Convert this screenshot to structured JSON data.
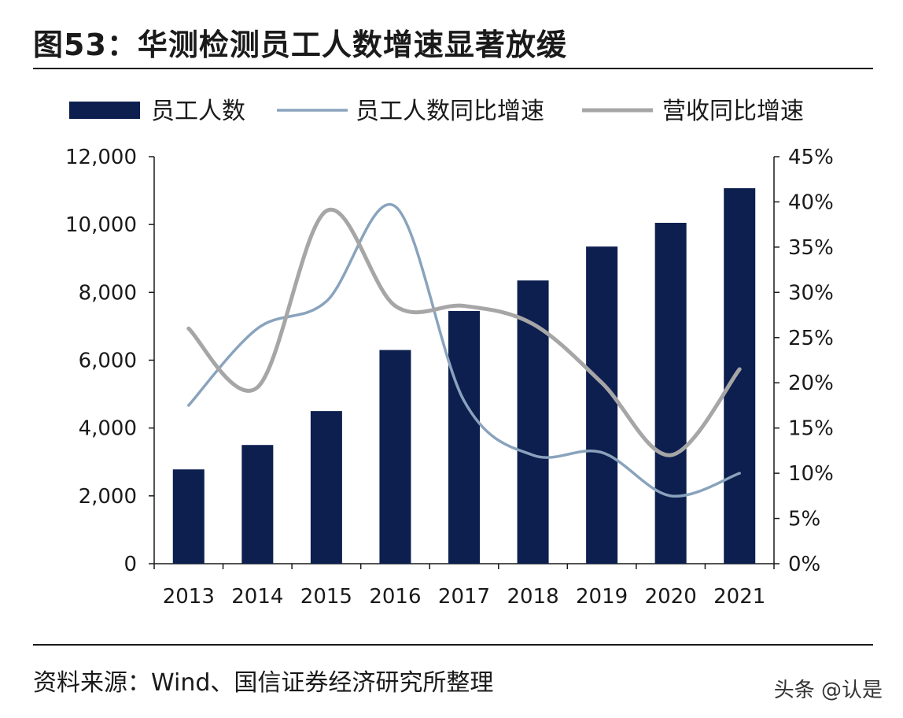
{
  "title": "图53：华测检测员工人数增速显著放缓",
  "source": "资料来源：Wind、国信证券经济研究所整理",
  "watermark": "头条 @认是",
  "colors": {
    "bar": "#0d1f4f",
    "employee_growth": "#8aa3bd",
    "revenue_growth": "#a6a6a6",
    "axis": "#1a1a1a"
  },
  "chart_data": {
    "type": "bar",
    "categories": [
      "2013",
      "2014",
      "2015",
      "2016",
      "2017",
      "2018",
      "2019",
      "2020",
      "2021"
    ],
    "series": [
      {
        "name": "员工人数",
        "type": "bar",
        "axis": "left",
        "values": [
          2780,
          3500,
          4500,
          6300,
          7450,
          8350,
          9350,
          10050,
          11070
        ]
      },
      {
        "name": "员工人数同比增速",
        "type": "line",
        "axis": "right",
        "values": [
          17.5,
          26,
          29,
          39.5,
          18,
          12,
          12.3,
          7.5,
          10
        ]
      },
      {
        "name": "营收同比增速",
        "type": "line",
        "axis": "right",
        "values": [
          26,
          19.5,
          39,
          28.5,
          28.5,
          26.5,
          20,
          12,
          21.5
        ]
      }
    ],
    "y_left": {
      "min": 0,
      "max": 12000,
      "ticks": [
        0,
        2000,
        4000,
        6000,
        8000,
        10000,
        12000
      ],
      "tick_labels": [
        "0",
        "2,000",
        "4,000",
        "6,000",
        "8,000",
        "10,000",
        "12,000"
      ]
    },
    "y_right": {
      "min": 0,
      "max": 45,
      "ticks": [
        0,
        5,
        10,
        15,
        20,
        25,
        30,
        35,
        40,
        45
      ],
      "tick_labels": [
        "0%",
        "5%",
        "10%",
        "15%",
        "20%",
        "25%",
        "30%",
        "35%",
        "40%",
        "45%"
      ]
    },
    "legend_position": "top",
    "grid": false
  }
}
